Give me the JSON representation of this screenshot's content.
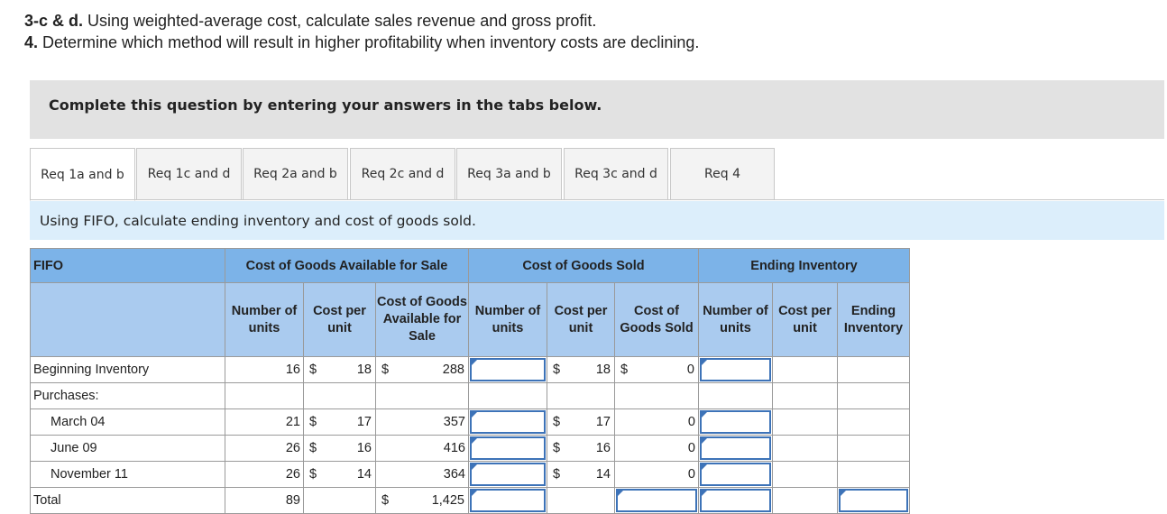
{
  "questions": {
    "q1_bold": "3-c & d.",
    "q1_text": " Using weighted-average cost, calculate sales revenue and gross profit.",
    "q2_bold": "4.",
    "q2_text": " Determine which method will result in higher profitability when inventory costs are declining."
  },
  "banner": "Complete this question by entering your answers in the tabs below.",
  "tabs": [
    "Req 1a and b",
    "Req 1c and d",
    "Req 2a and b",
    "Req 2c and d",
    "Req 3a and b",
    "Req 3c and d",
    "Req 4"
  ],
  "instruction": "Using FIFO, calculate ending inventory and cost of goods sold.",
  "table": {
    "corner": "FIFO",
    "group_available": "Cost of Goods Available for Sale",
    "group_sold": "Cost of Goods Sold",
    "group_ending": "Ending Inventory",
    "col_number": "Number of units",
    "col_cost_per": "Cost per unit",
    "col_cogas": "Cost of Goods Available for Sale",
    "col_number2": "Number of units",
    "col_cost_per2": "Cost per unit",
    "col_cogs": "Cost of Goods Sold",
    "col_number3": "Number of units",
    "col_cost3": "Cost per unit",
    "col_ending": "Ending Inventory",
    "dollar": "$",
    "rows": {
      "beginning": {
        "label": "Beginning Inventory",
        "units": "16",
        "cost": "18",
        "total": "288",
        "sold_cost": "18",
        "cogs": "0"
      },
      "purchases": {
        "label": "Purchases:"
      },
      "march": {
        "label": "March 04",
        "units": "21",
        "cost": "17",
        "total": "357",
        "sold_cost": "17",
        "cogs": "0"
      },
      "june": {
        "label": "June 09",
        "units": "26",
        "cost": "16",
        "total": "416",
        "sold_cost": "16",
        "cogs": "0"
      },
      "november": {
        "label": "November 11",
        "units": "26",
        "cost": "14",
        "total": "364",
        "sold_cost": "14",
        "cogs": "0"
      },
      "total": {
        "label": "Total",
        "units": "89",
        "total": "1,425"
      }
    }
  }
}
